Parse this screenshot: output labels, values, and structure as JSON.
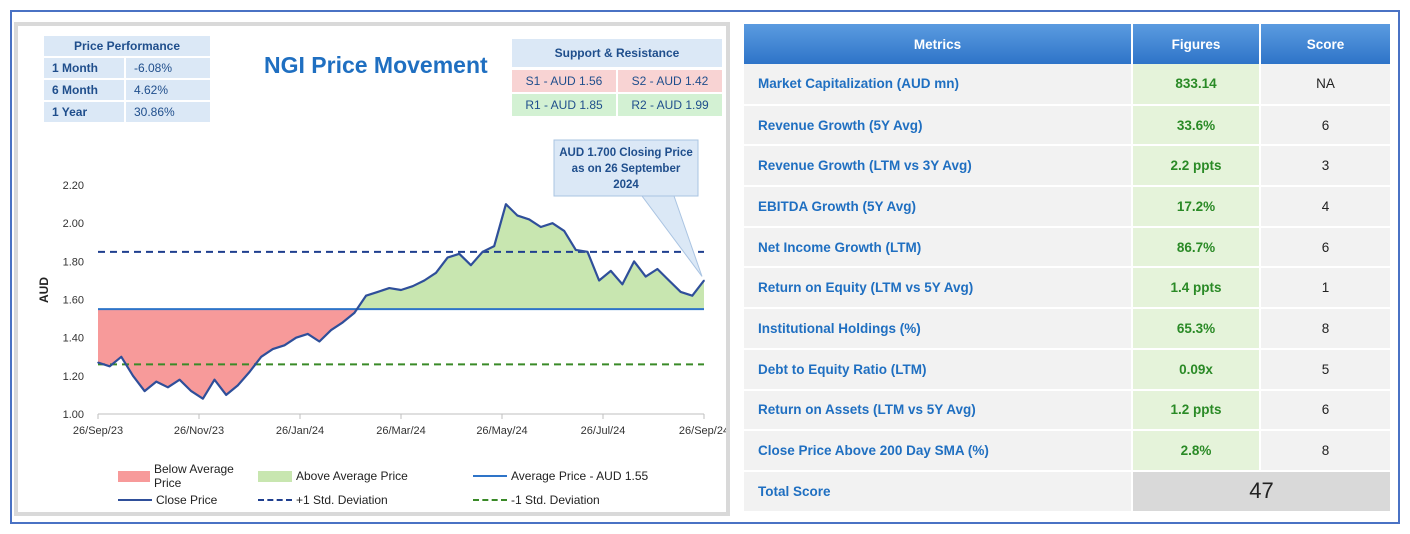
{
  "price_performance": {
    "header": "Price Performance",
    "rows": [
      {
        "label": "1 Month",
        "value": "-6.08%"
      },
      {
        "label": "6 Month",
        "value": "4.62%"
      },
      {
        "label": "1 Year",
        "value": "30.86%"
      }
    ]
  },
  "support_resistance": {
    "header": "Support & Resistance",
    "s1": "S1 - AUD 1.56",
    "s2": "S2 - AUD 1.42",
    "r1": "R1 - AUD 1.85",
    "r2": "R2 - AUD 1.99"
  },
  "colors": {
    "below_fill": "#f79a9a",
    "above_fill": "#c8e6b0",
    "avg_line": "#2e74c8",
    "close_line": "#2f4f9a",
    "plus_sd": "#1f3f8f",
    "minus_sd": "#3a8a28"
  },
  "legend": {
    "below": "Below Average Price",
    "above": "Above Average Price",
    "average": "Average Price - AUD 1.55",
    "close": "Close Price",
    "plus_sd": "+1 Std. Deviation",
    "minus_sd": "-1 Std. Deviation"
  },
  "chart_data": {
    "type": "area",
    "title": "NGI Price Movement",
    "xlabel": "",
    "ylabel": "AUD",
    "ylim": [
      1.0,
      2.3
    ],
    "yticks": [
      "1.00",
      "1.20",
      "1.40",
      "1.60",
      "1.80",
      "2.00",
      "2.20"
    ],
    "xticks": [
      "26/Sep/23",
      "26/Nov/23",
      "26/Jan/24",
      "26/Mar/24",
      "26/May/24",
      "26/Jul/24",
      "26/Sep/24"
    ],
    "average": 1.55,
    "plus_1_sd": 1.85,
    "minus_1_sd": 1.26,
    "annotation": "AUD 1.700 Closing Price as on 26 September 2024",
    "series": [
      {
        "name": "Close Price",
        "x": [
          "26/Sep/23",
          "03/Oct/23",
          "10/Oct/23",
          "17/Oct/23",
          "24/Oct/23",
          "31/Oct/23",
          "07/Nov/23",
          "14/Nov/23",
          "21/Nov/23",
          "28/Nov/23",
          "05/Dec/23",
          "12/Dec/23",
          "19/Dec/23",
          "26/Dec/23",
          "02/Jan/24",
          "09/Jan/24",
          "16/Jan/24",
          "23/Jan/24",
          "30/Jan/24",
          "06/Feb/24",
          "13/Feb/24",
          "20/Feb/24",
          "27/Feb/24",
          "05/Mar/24",
          "12/Mar/24",
          "19/Mar/24",
          "26/Mar/24",
          "02/Apr/24",
          "09/Apr/24",
          "16/Apr/24",
          "23/Apr/24",
          "30/Apr/24",
          "07/May/24",
          "14/May/24",
          "21/May/24",
          "28/May/24",
          "04/Jun/24",
          "11/Jun/24",
          "18/Jun/24",
          "25/Jun/24",
          "02/Jul/24",
          "09/Jul/24",
          "16/Jul/24",
          "23/Jul/24",
          "30/Jul/24",
          "06/Aug/24",
          "13/Aug/24",
          "20/Aug/24",
          "27/Aug/24",
          "03/Sep/24",
          "10/Sep/24",
          "17/Sep/24",
          "26/Sep/24"
        ],
        "values": [
          1.27,
          1.25,
          1.3,
          1.2,
          1.12,
          1.17,
          1.14,
          1.18,
          1.12,
          1.08,
          1.18,
          1.1,
          1.15,
          1.22,
          1.3,
          1.34,
          1.36,
          1.4,
          1.42,
          1.38,
          1.44,
          1.48,
          1.53,
          1.62,
          1.64,
          1.66,
          1.65,
          1.67,
          1.7,
          1.74,
          1.82,
          1.84,
          1.78,
          1.85,
          1.88,
          2.1,
          2.04,
          2.02,
          1.98,
          2.0,
          1.96,
          1.86,
          1.85,
          1.7,
          1.75,
          1.68,
          1.8,
          1.72,
          1.76,
          1.7,
          1.64,
          1.62,
          1.7
        ]
      }
    ]
  },
  "metrics_table": {
    "headers": [
      "Metrics",
      "Figures",
      "Score"
    ],
    "rows": [
      {
        "metric": "Market Capitalization (AUD mn)",
        "figure": "833.14",
        "score": "NA"
      },
      {
        "metric": "Revenue Growth (5Y Avg)",
        "figure": "33.6%",
        "score": "6"
      },
      {
        "metric": "Revenue Growth (LTM vs 3Y Avg)",
        "figure": "2.2 ppts",
        "score": "3"
      },
      {
        "metric": "EBITDA Growth (5Y Avg)",
        "figure": "17.2%",
        "score": "4"
      },
      {
        "metric": "Net Income Growth (LTM)",
        "figure": "86.7%",
        "score": "6"
      },
      {
        "metric": "Return on Equity (LTM vs 5Y Avg)",
        "figure": "1.4 ppts",
        "score": "1"
      },
      {
        "metric": "Institutional Holdings (%)",
        "figure": "65.3%",
        "score": "8"
      },
      {
        "metric": "Debt to Equity Ratio (LTM)",
        "figure": "0.09x",
        "score": "5"
      },
      {
        "metric": "Return on Assets (LTM vs 5Y Avg)",
        "figure": "1.2 ppts",
        "score": "6"
      },
      {
        "metric": "Close Price Above 200 Day SMA (%)",
        "figure": "2.8%",
        "score": "8"
      }
    ],
    "total_label": "Total Score",
    "total_value": "47"
  }
}
